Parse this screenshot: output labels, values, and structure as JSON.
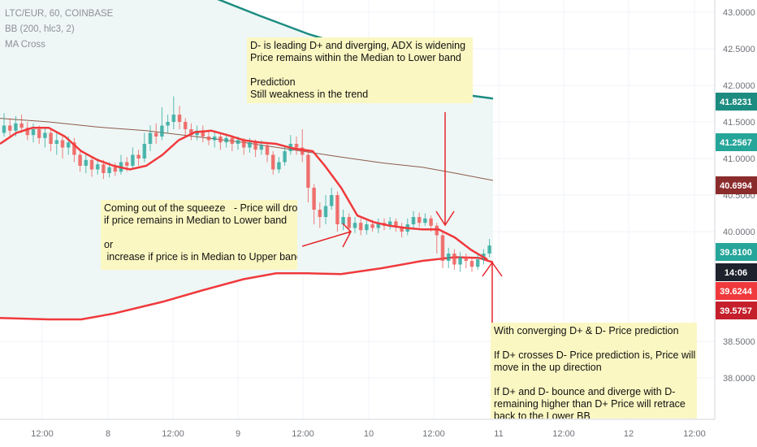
{
  "legend": {
    "symbol": "LTC/EUR, 60, COINBASE",
    "bb": "BB (200, hlc3, 2)",
    "ma": "MA Cross"
  },
  "annotations": {
    "top": "D- is leading D+ and diverging, ADX is widening\nPrice remains within the Median to Lower band\n\nPrediction\nStill weakness in the trend",
    "left": "Coming out of the squeeze   - Price will drop\nif price remains in Median to Lower band\n\nor\n increase if price is in Median to Upper band",
    "right": "With converging D+ & D- Price prediction\n\nIf D+ crosses D- Price prediction is, Price will\nmove in the up direction\n\nIf D+ and D- bounce and diverge with D-\nremaining higher than D+ Price will retrace\nback to the Lower BB"
  },
  "colors": {
    "up": "#26a69a",
    "down": "#ef5350",
    "upper_band": "#1c8c81",
    "basis": "#8d5a4a",
    "lower_band": "#f0393c",
    "ma": "#f0393c",
    "band_fill": "#eef7f6",
    "arrow": "#e6262b",
    "price_tag": "#26a69a",
    "time_tag": "#1e222d"
  },
  "chart_data": {
    "type": "candlestick",
    "ylim": [
      37.6,
      43.2
    ],
    "y_ticks": [
      "43.0000",
      "42.5000",
      "42.0000",
      "41.5000",
      "41.0000",
      "40.5000",
      "40.0000",
      "38.5000",
      "38.0000"
    ],
    "x_ticks": [
      "12:00",
      "8",
      "12:00",
      "9",
      "12:00",
      "10",
      "12:00",
      "11",
      "12:00",
      "12",
      "12:00"
    ],
    "price_tags": [
      {
        "label": "41.8231",
        "value": 41.8231,
        "series": "upper_band"
      },
      {
        "label": "41.2567",
        "value": 41.2567,
        "series": "up"
      },
      {
        "label": "40.6994",
        "value": 40.6994,
        "series": "basis"
      },
      {
        "label": "39.8100",
        "value": 39.81,
        "series": "up"
      },
      {
        "label": "14:06",
        "value": 39.73,
        "series": "time"
      },
      {
        "label": "39.6244",
        "value": 39.6244,
        "series": "ma"
      },
      {
        "label": "39.5757",
        "value": 39.5757,
        "series": "lower_band"
      }
    ],
    "upper_band": [
      [
        -2,
        43.3
      ],
      [
        240,
        43.3
      ],
      [
        263,
        43.2
      ],
      [
        320,
        42.95
      ],
      [
        380,
        42.7
      ],
      [
        440,
        42.5
      ],
      [
        480,
        42.3
      ],
      [
        510,
        42.1
      ],
      [
        530,
        41.95
      ],
      [
        550,
        41.88
      ],
      [
        580,
        41.86
      ],
      [
        607,
        41.82
      ]
    ],
    "basis": [
      [
        -2,
        41.55
      ],
      [
        60,
        41.5
      ],
      [
        120,
        41.43
      ],
      [
        180,
        41.38
      ],
      [
        240,
        41.3
      ],
      [
        300,
        41.22
      ],
      [
        360,
        41.12
      ],
      [
        420,
        41.02
      ],
      [
        470,
        40.94
      ],
      [
        520,
        40.88
      ],
      [
        560,
        40.8
      ],
      [
        607,
        40.7
      ]
    ],
    "lower_band": [
      [
        -2,
        38.82
      ],
      [
        60,
        38.8
      ],
      [
        100,
        38.8
      ],
      [
        140,
        38.88
      ],
      [
        200,
        39.04
      ],
      [
        250,
        39.2
      ],
      [
        300,
        39.35
      ],
      [
        340,
        39.43
      ],
      [
        380,
        39.43
      ],
      [
        420,
        39.42
      ],
      [
        470,
        39.5
      ],
      [
        520,
        39.6
      ],
      [
        560,
        39.65
      ],
      [
        590,
        39.64
      ],
      [
        607,
        39.58
      ]
    ],
    "ma": [
      [
        0,
        41.2
      ],
      [
        20,
        41.35
      ],
      [
        40,
        41.42
      ],
      [
        60,
        41.42
      ],
      [
        80,
        41.3
      ],
      [
        100,
        41.1
      ],
      [
        120,
        40.98
      ],
      [
        140,
        40.9
      ],
      [
        160,
        40.85
      ],
      [
        180,
        40.9
      ],
      [
        200,
        41.05
      ],
      [
        220,
        41.25
      ],
      [
        240,
        41.36
      ],
      [
        260,
        41.38
      ],
      [
        280,
        41.32
      ],
      [
        300,
        41.25
      ],
      [
        320,
        41.22
      ],
      [
        340,
        41.2
      ],
      [
        360,
        41.14
      ],
      [
        385,
        41.1
      ],
      [
        400,
        40.9
      ],
      [
        420,
        40.6
      ],
      [
        440,
        40.22
      ],
      [
        460,
        40.13
      ],
      [
        480,
        40.08
      ],
      [
        500,
        40.05
      ],
      [
        520,
        40.03
      ],
      [
        540,
        40.03
      ],
      [
        560,
        39.92
      ],
      [
        580,
        39.75
      ],
      [
        600,
        39.62
      ]
    ],
    "candles": [
      {
        "o": 41.35,
        "c": 41.45,
        "h": 41.62,
        "l": 41.3
      },
      {
        "o": 41.45,
        "c": 41.38,
        "h": 41.55,
        "l": 41.28
      },
      {
        "o": 41.38,
        "c": 41.48,
        "h": 41.58,
        "l": 41.3
      },
      {
        "o": 41.48,
        "c": 41.42,
        "h": 41.6,
        "l": 41.35
      },
      {
        "o": 41.42,
        "c": 41.32,
        "h": 41.5,
        "l": 41.25
      },
      {
        "o": 41.32,
        "c": 41.4,
        "h": 41.48,
        "l": 41.22
      },
      {
        "o": 41.4,
        "c": 41.28,
        "h": 41.45,
        "l": 41.2
      },
      {
        "o": 41.28,
        "c": 41.35,
        "h": 41.42,
        "l": 41.15
      },
      {
        "o": 41.35,
        "c": 41.2,
        "h": 41.4,
        "l": 41.1
      },
      {
        "o": 41.2,
        "c": 41.25,
        "h": 41.35,
        "l": 41.05
      },
      {
        "o": 41.25,
        "c": 41.15,
        "h": 41.3,
        "l": 41.0
      },
      {
        "o": 41.15,
        "c": 41.22,
        "h": 41.3,
        "l": 41.05
      },
      {
        "o": 41.22,
        "c": 41.05,
        "h": 41.28,
        "l": 40.95
      },
      {
        "o": 41.05,
        "c": 40.9,
        "h": 41.12,
        "l": 40.82
      },
      {
        "o": 40.9,
        "c": 40.98,
        "h": 41.05,
        "l": 40.8
      },
      {
        "o": 40.98,
        "c": 40.85,
        "h": 41.02,
        "l": 40.75
      },
      {
        "o": 40.85,
        "c": 40.92,
        "h": 41.0,
        "l": 40.78
      },
      {
        "o": 40.92,
        "c": 40.8,
        "h": 40.98,
        "l": 40.72
      },
      {
        "o": 40.8,
        "c": 40.88,
        "h": 40.95,
        "l": 40.74
      },
      {
        "o": 40.88,
        "c": 40.82,
        "h": 40.94,
        "l": 40.76
      },
      {
        "o": 40.82,
        "c": 40.95,
        "h": 41.05,
        "l": 40.78
      },
      {
        "o": 40.95,
        "c": 40.9,
        "h": 41.02,
        "l": 40.82
      },
      {
        "o": 40.9,
        "c": 41.05,
        "h": 41.15,
        "l": 40.85
      },
      {
        "o": 41.05,
        "c": 41.0,
        "h": 41.12,
        "l": 40.9
      },
      {
        "o": 41.0,
        "c": 41.2,
        "h": 41.35,
        "l": 40.95
      },
      {
        "o": 41.2,
        "c": 41.35,
        "h": 41.45,
        "l": 41.1
      },
      {
        "o": 41.35,
        "c": 41.3,
        "h": 41.48,
        "l": 41.2
      },
      {
        "o": 41.3,
        "c": 41.45,
        "h": 41.7,
        "l": 41.25
      },
      {
        "o": 41.45,
        "c": 41.5,
        "h": 41.6,
        "l": 41.35
      },
      {
        "o": 41.5,
        "c": 41.6,
        "h": 41.85,
        "l": 41.4
      },
      {
        "o": 41.6,
        "c": 41.5,
        "h": 41.72,
        "l": 41.4
      },
      {
        "o": 41.5,
        "c": 41.4,
        "h": 41.55,
        "l": 41.3
      },
      {
        "o": 41.4,
        "c": 41.32,
        "h": 41.48,
        "l": 41.25
      },
      {
        "o": 41.32,
        "c": 41.38,
        "h": 41.45,
        "l": 41.25
      },
      {
        "o": 41.38,
        "c": 41.3,
        "h": 41.45,
        "l": 41.22
      },
      {
        "o": 41.3,
        "c": 41.25,
        "h": 41.38,
        "l": 41.18
      },
      {
        "o": 41.25,
        "c": 41.3,
        "h": 41.36,
        "l": 41.15
      },
      {
        "o": 41.3,
        "c": 41.22,
        "h": 41.35,
        "l": 41.12
      },
      {
        "o": 41.22,
        "c": 41.28,
        "h": 41.34,
        "l": 41.15
      },
      {
        "o": 41.28,
        "c": 41.2,
        "h": 41.32,
        "l": 41.1
      },
      {
        "o": 41.2,
        "c": 41.25,
        "h": 41.3,
        "l": 41.12
      },
      {
        "o": 41.25,
        "c": 41.15,
        "h": 41.28,
        "l": 41.05
      },
      {
        "o": 41.15,
        "c": 41.22,
        "h": 41.28,
        "l": 41.08
      },
      {
        "o": 41.22,
        "c": 41.12,
        "h": 41.26,
        "l": 41.02
      },
      {
        "o": 41.12,
        "c": 41.18,
        "h": 41.25,
        "l": 41.05
      },
      {
        "o": 41.18,
        "c": 41.05,
        "h": 41.22,
        "l": 40.95
      },
      {
        "o": 41.05,
        "c": 40.85,
        "h": 41.1,
        "l": 40.78
      },
      {
        "o": 40.85,
        "c": 40.95,
        "h": 41.02,
        "l": 40.8
      },
      {
        "o": 40.95,
        "c": 41.1,
        "h": 41.18,
        "l": 40.9
      },
      {
        "o": 41.1,
        "c": 41.2,
        "h": 41.32,
        "l": 41.05
      },
      {
        "o": 41.2,
        "c": 41.15,
        "h": 41.3,
        "l": 41.05
      },
      {
        "o": 41.15,
        "c": 41.05,
        "h": 41.4,
        "l": 40.95
      },
      {
        "o": 41.05,
        "c": 40.6,
        "h": 41.12,
        "l": 40.4
      },
      {
        "o": 40.6,
        "c": 40.3,
        "h": 40.65,
        "l": 40.1
      },
      {
        "o": 40.3,
        "c": 40.2,
        "h": 40.4,
        "l": 40.05
      },
      {
        "o": 40.2,
        "c": 40.35,
        "h": 40.5,
        "l": 40.1
      },
      {
        "o": 40.35,
        "c": 40.5,
        "h": 40.6,
        "l": 40.3
      },
      {
        "o": 40.5,
        "c": 40.1,
        "h": 40.55,
        "l": 40.0
      },
      {
        "o": 40.1,
        "c": 40.2,
        "h": 40.3,
        "l": 40.02
      },
      {
        "o": 40.2,
        "c": 40.05,
        "h": 40.25,
        "l": 39.95
      },
      {
        "o": 40.05,
        "c": 40.12,
        "h": 40.2,
        "l": 39.98
      },
      {
        "o": 40.12,
        "c": 40.02,
        "h": 40.18,
        "l": 39.95
      },
      {
        "o": 40.02,
        "c": 40.1,
        "h": 40.15,
        "l": 39.96
      },
      {
        "o": 40.1,
        "c": 40.05,
        "h": 40.16,
        "l": 40.0
      },
      {
        "o": 40.05,
        "c": 40.12,
        "h": 40.18,
        "l": 39.98
      },
      {
        "o": 40.12,
        "c": 40.08,
        "h": 40.18,
        "l": 40.02
      },
      {
        "o": 40.08,
        "c": 40.14,
        "h": 40.2,
        "l": 40.03
      },
      {
        "o": 40.14,
        "c": 40.06,
        "h": 40.18,
        "l": 40.0
      },
      {
        "o": 40.06,
        "c": 40.0,
        "h": 40.12,
        "l": 39.92
      },
      {
        "o": 40.0,
        "c": 40.1,
        "h": 40.18,
        "l": 39.95
      },
      {
        "o": 40.1,
        "c": 40.2,
        "h": 40.28,
        "l": 40.05
      },
      {
        "o": 40.2,
        "c": 40.12,
        "h": 40.26,
        "l": 40.06
      },
      {
        "o": 40.12,
        "c": 40.18,
        "h": 40.25,
        "l": 40.08
      },
      {
        "o": 40.18,
        "c": 40.08,
        "h": 40.22,
        "l": 40.0
      },
      {
        "o": 40.08,
        "c": 39.95,
        "h": 40.12,
        "l": 39.7
      },
      {
        "o": 39.95,
        "c": 39.6,
        "h": 40.0,
        "l": 39.5
      },
      {
        "o": 39.6,
        "c": 39.7,
        "h": 39.78,
        "l": 39.5
      },
      {
        "o": 39.7,
        "c": 39.55,
        "h": 39.76,
        "l": 39.48
      },
      {
        "o": 39.55,
        "c": 39.65,
        "h": 39.72,
        "l": 39.45
      },
      {
        "o": 39.65,
        "c": 39.6,
        "h": 39.7,
        "l": 39.5
      },
      {
        "o": 39.6,
        "c": 39.52,
        "h": 39.66,
        "l": 39.45
      },
      {
        "o": 39.52,
        "c": 39.62,
        "h": 39.7,
        "l": 39.48
      },
      {
        "o": 39.62,
        "c": 39.7,
        "h": 39.76,
        "l": 39.55
      },
      {
        "o": 39.7,
        "c": 39.81,
        "h": 39.9,
        "l": 39.65
      }
    ],
    "candle_x": {
      "start": 5,
      "step": 7.2
    }
  }
}
